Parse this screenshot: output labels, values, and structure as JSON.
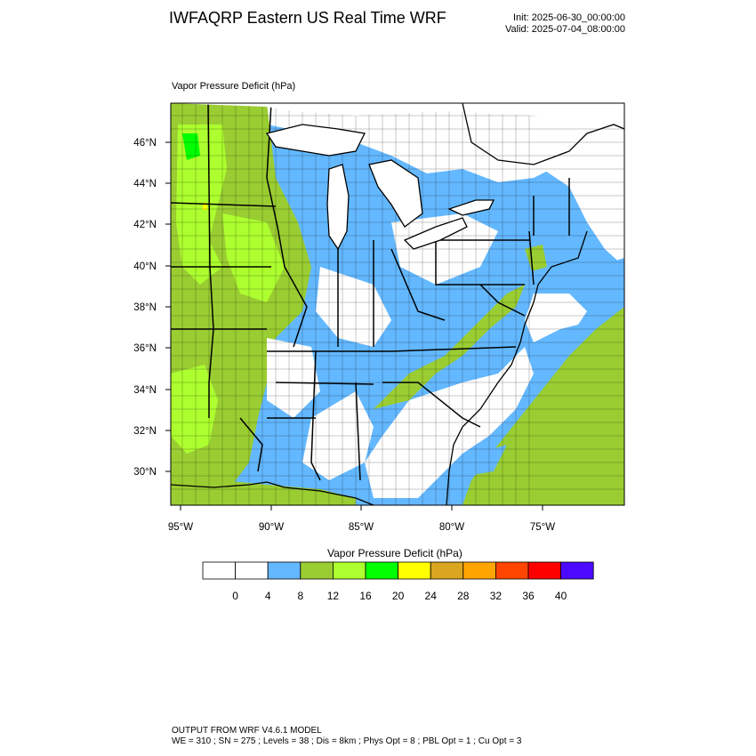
{
  "header": {
    "title": "IWFAQRP Eastern US Real Time WRF",
    "init": "Init: 2025-06-30_00:00:00",
    "valid": "Valid: 2025-07-04_08:00:00"
  },
  "panel": {
    "variable_title": "Vapor Pressure Deficit   (hPa)"
  },
  "map": {
    "lat_labels": [
      "46°N",
      "44°N",
      "42°N",
      "40°N",
      "38°N",
      "36°N",
      "34°N",
      "32°N",
      "30°N"
    ],
    "lon_labels": [
      "95°W",
      "90°W",
      "85°W",
      "80°W",
      "75°W"
    ],
    "colors": {
      "land_low": "#ffffff",
      "vpd_4_8": "#63b8ff",
      "vpd_8_12": "#9acd32",
      "vpd_12_16": "#adff2f",
      "vpd_16_20": "#00ff00",
      "vpd_20_24": "#ffff00",
      "lake": "#ffffff",
      "ocean_low": "#63b8ff"
    }
  },
  "colorbar": {
    "title": "Vapor Pressure Deficit  (hPa)",
    "colors": [
      "#ffffff",
      "#ffffff",
      "#63b8ff",
      "#9acd32",
      "#adff2f",
      "#00ff00",
      "#ffff00",
      "#daa520",
      "#ffa500",
      "#ff4500",
      "#ff0000",
      "#4b0aff"
    ],
    "labels": [
      "0",
      "4",
      "8",
      "12",
      "16",
      "20",
      "24",
      "28",
      "32",
      "36",
      "40"
    ]
  },
  "footer": {
    "line1": "OUTPUT FROM WRF V4.6.1 MODEL",
    "line2": "WE = 310 ; SN = 275 ; Levels = 38 ; Dis = 8km ; Phys Opt = 8 ; PBL Opt = 1 ; Cu Opt = 3"
  }
}
